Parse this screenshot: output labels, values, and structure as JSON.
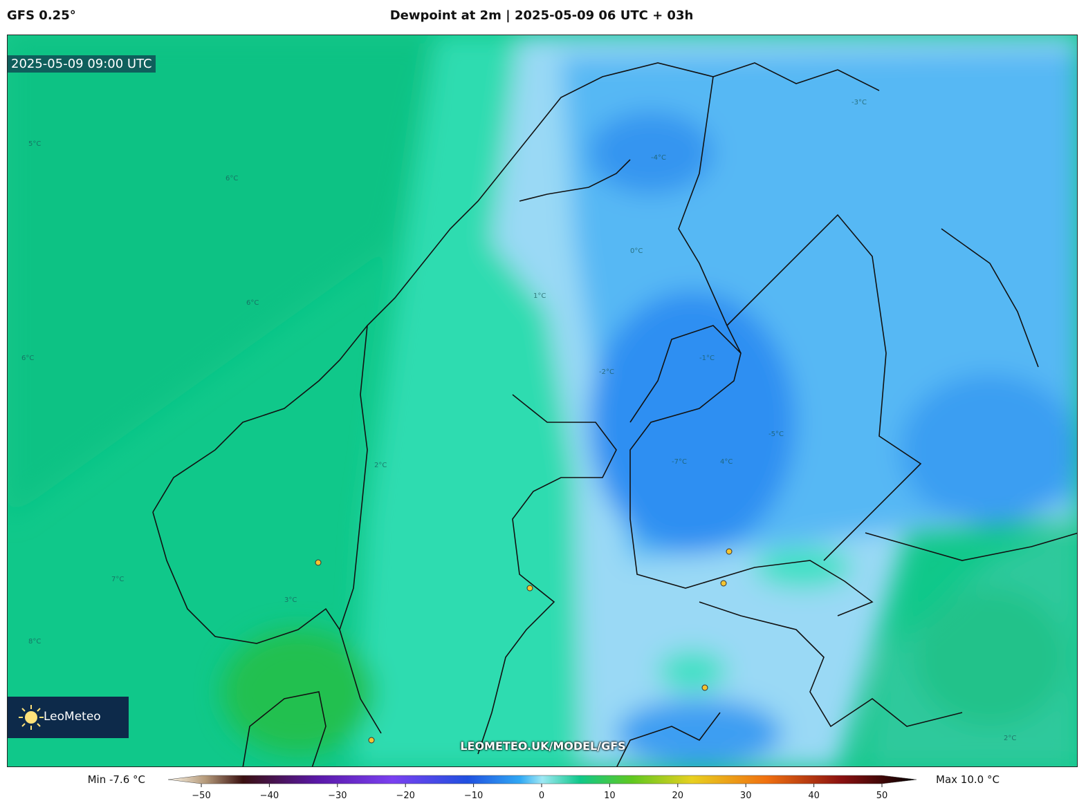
{
  "header": {
    "model": "GFS 0.25°",
    "title": "Dewpoint at 2m | 2025-05-09 06 UTC + 03h"
  },
  "map": {
    "valid_time": "2025-05-09 09:00 UTC",
    "logo": "LeoMeteo",
    "watermark": "LEOMETEO.UK/MODEL/GFS",
    "contour_labels": [
      "5°C",
      "6°C",
      "6°C",
      "6°C",
      "7°C",
      "8°C",
      "3°C",
      "2°C",
      "1°C",
      "-1°C",
      "-2°C",
      "-3°C",
      "-4°C",
      "-5°C",
      "-7°C",
      "0°C",
      "4°C",
      "2°C"
    ]
  },
  "colorbar": {
    "min_label": "Min -7.6 °C",
    "max_label": "Max 10.0 °C",
    "range": [
      -50,
      50
    ],
    "ticks": [
      {
        "value": -50,
        "label": "−50"
      },
      {
        "value": -40,
        "label": "−40"
      },
      {
        "value": -30,
        "label": "−30"
      },
      {
        "value": -20,
        "label": "−20"
      },
      {
        "value": -10,
        "label": "−10"
      },
      0,
      10,
      20,
      30,
      40,
      50
    ]
  }
}
